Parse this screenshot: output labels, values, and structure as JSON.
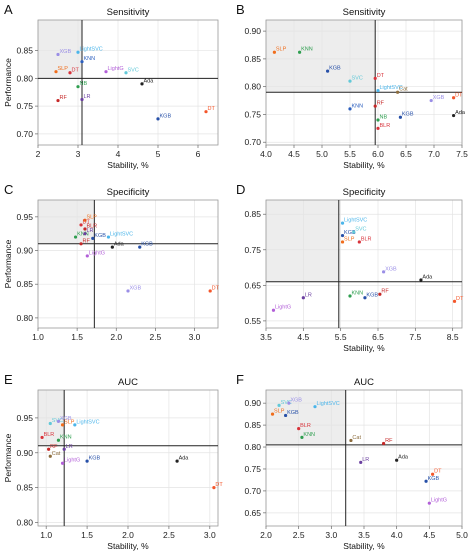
{
  "chart_data": [
    {
      "panel": "A",
      "type": "scatter",
      "title": "Sensitivity",
      "xlabel": "Stability, %",
      "ylabel": "Performance",
      "xlim": [
        2,
        6.5
      ],
      "ylim": [
        0.68,
        0.905
      ],
      "xticks": [
        "2",
        "3",
        "4",
        "5",
        "6"
      ],
      "xtick_values": [
        2,
        3,
        4,
        5,
        6
      ],
      "yticks": [
        "0.70",
        "0.75",
        "0.80",
        "0.85"
      ],
      "ytick_values": [
        0.7,
        0.75,
        0.8,
        0.85
      ],
      "ref": {
        "x": 3.1,
        "y": 0.8
      },
      "grid": true,
      "points": [
        {
          "label": "XGB",
          "x": 2.5,
          "y": 0.843,
          "color": "#9a8ee6"
        },
        {
          "label": "LightSVC",
          "x": 3.0,
          "y": 0.847,
          "color": "#4bb5ea"
        },
        {
          "label": "KNN",
          "x": 3.1,
          "y": 0.83,
          "color": "#2c5fbe"
        },
        {
          "label": "SLP",
          "x": 2.45,
          "y": 0.812,
          "color": "#f06d1c"
        },
        {
          "label": "DT",
          "x": 2.8,
          "y": 0.81,
          "color": "#d8323a"
        },
        {
          "label": "LightG",
          "x": 3.7,
          "y": 0.812,
          "color": "#b25fd8"
        },
        {
          "label": "SVC",
          "x": 4.2,
          "y": 0.81,
          "color": "#62c9d8"
        },
        {
          "label": "Ada",
          "x": 4.6,
          "y": 0.79,
          "color": "#222222"
        },
        {
          "label": "RF",
          "x": 2.5,
          "y": 0.76,
          "color": "#c62828"
        },
        {
          "label": "LR",
          "x": 3.1,
          "y": 0.762,
          "color": "#6b3fa0"
        },
        {
          "label": "NB",
          "x": 3.0,
          "y": 0.785,
          "color": "#2e9e4f"
        },
        {
          "label": "KGB",
          "x": 5.0,
          "y": 0.727,
          "color": "#2750a8"
        },
        {
          "label": "DT",
          "x": 6.2,
          "y": 0.74,
          "color": "#f4562a"
        }
      ]
    },
    {
      "panel": "B",
      "type": "scatter",
      "title": "Sensitivity",
      "xlabel": "Stability, %",
      "ylabel": "",
      "xlim": [
        4.0,
        7.5
      ],
      "ylim": [
        0.695,
        0.92
      ],
      "xticks": [
        "4.0",
        "4.5",
        "5.0",
        "5.5",
        "6.0",
        "6.5",
        "7.0",
        "7.5"
      ],
      "xtick_values": [
        4.0,
        4.5,
        5.0,
        5.5,
        6.0,
        6.5,
        7.0,
        7.5
      ],
      "yticks": [
        "0.70",
        "0.75",
        "0.80",
        "0.85",
        "0.90"
      ],
      "ytick_values": [
        0.7,
        0.75,
        0.8,
        0.85,
        0.9
      ],
      "ref": {
        "x": 5.95,
        "y": 0.79
      },
      "grid": true,
      "points": [
        {
          "label": "SLP",
          "x": 4.15,
          "y": 0.862,
          "color": "#f06d1c"
        },
        {
          "label": "KNN",
          "x": 4.6,
          "y": 0.862,
          "color": "#2e9e4f"
        },
        {
          "label": "KGB",
          "x": 5.1,
          "y": 0.828,
          "color": "#2750a8"
        },
        {
          "label": "SVC",
          "x": 5.5,
          "y": 0.81,
          "color": "#62c9d8"
        },
        {
          "label": "DT",
          "x": 5.95,
          "y": 0.815,
          "color": "#d8323a"
        },
        {
          "label": "LightSVC",
          "x": 6.0,
          "y": 0.793,
          "color": "#4bb5ea"
        },
        {
          "label": "Cat",
          "x": 6.35,
          "y": 0.79,
          "color": "#8c6d3e"
        },
        {
          "label": "XGB",
          "x": 6.95,
          "y": 0.775,
          "color": "#9a8ee6"
        },
        {
          "label": "DT",
          "x": 7.35,
          "y": 0.78,
          "color": "#f4562a"
        },
        {
          "label": "KNN",
          "x": 5.5,
          "y": 0.76,
          "color": "#2c5fbe"
        },
        {
          "label": "RF",
          "x": 5.95,
          "y": 0.765,
          "color": "#c62828"
        },
        {
          "label": "KGB",
          "x": 6.4,
          "y": 0.745,
          "color": "#2750a8"
        },
        {
          "label": "Ada",
          "x": 7.35,
          "y": 0.748,
          "color": "#222222"
        },
        {
          "label": "NB",
          "x": 6.0,
          "y": 0.74,
          "color": "#2e9e4f"
        },
        {
          "label": "BLR",
          "x": 6.0,
          "y": 0.725,
          "color": "#d8323a"
        }
      ]
    },
    {
      "panel": "C",
      "type": "scatter",
      "title": "Specificity",
      "xlabel": "",
      "ylabel": "Performance",
      "xlim": [
        1.0,
        3.3
      ],
      "ylim": [
        0.785,
        0.975
      ],
      "xticks": [
        "1.0",
        "1.5",
        "2.0",
        "2.5",
        "3.0"
      ],
      "xtick_values": [
        1.0,
        1.5,
        2.0,
        2.5,
        3.0
      ],
      "yticks": [
        "0.80",
        "0.85",
        "0.90",
        "0.95"
      ],
      "ytick_values": [
        0.8,
        0.85,
        0.9,
        0.95
      ],
      "ref": {
        "x": 1.72,
        "y": 0.91
      },
      "grid": true,
      "points": [
        {
          "label": "SLP",
          "x": 1.6,
          "y": 0.945,
          "color": "#f06d1c"
        },
        {
          "label": "DT",
          "x": 1.55,
          "y": 0.938,
          "color": "#d8323a"
        },
        {
          "label": "BLR",
          "x": 1.6,
          "y": 0.932,
          "color": "#c62828"
        },
        {
          "label": "KNN",
          "x": 1.48,
          "y": 0.92,
          "color": "#2e9e4f"
        },
        {
          "label": "LR",
          "x": 1.6,
          "y": 0.925,
          "color": "#6b3fa0"
        },
        {
          "label": "KGB",
          "x": 1.7,
          "y": 0.918,
          "color": "#2750a8"
        },
        {
          "label": "LightSVC",
          "x": 1.9,
          "y": 0.92,
          "color": "#4bb5ea"
        },
        {
          "label": "RF",
          "x": 1.55,
          "y": 0.91,
          "color": "#c62828"
        },
        {
          "label": "Ada",
          "x": 1.95,
          "y": 0.905,
          "color": "#222222"
        },
        {
          "label": "KGB",
          "x": 2.3,
          "y": 0.905,
          "color": "#2750a8"
        },
        {
          "label": "LightG",
          "x": 1.63,
          "y": 0.892,
          "color": "#b25fd8"
        },
        {
          "label": "XGB",
          "x": 2.15,
          "y": 0.84,
          "color": "#9a8ee6"
        },
        {
          "label": "DT",
          "x": 3.2,
          "y": 0.84,
          "color": "#f4562a"
        }
      ]
    },
    {
      "panel": "D",
      "type": "scatter",
      "title": "Specificity",
      "xlabel": "Stability, %",
      "ylabel": "",
      "xlim": [
        3.5,
        8.75
      ],
      "ylim": [
        0.53,
        0.89
      ],
      "xticks": [
        "3.5",
        "4.5",
        "5.5",
        "6.5",
        "7.5",
        "8.5"
      ],
      "xtick_values": [
        3.5,
        4.5,
        5.5,
        6.5,
        7.5,
        8.5
      ],
      "yticks": [
        "0.55",
        "0.65",
        "0.75",
        "0.85"
      ],
      "ytick_values": [
        0.55,
        0.65,
        0.75,
        0.85
      ],
      "ref": {
        "x": 5.45,
        "y": 0.66
      },
      "grid": true,
      "points": [
        {
          "label": "LightSVC",
          "x": 5.55,
          "y": 0.825,
          "color": "#4bb5ea"
        },
        {
          "label": "KGB",
          "x": 5.55,
          "y": 0.79,
          "color": "#2750a8"
        },
        {
          "label": "SVC",
          "x": 5.85,
          "y": 0.8,
          "color": "#62c9d8"
        },
        {
          "label": "SLP",
          "x": 5.55,
          "y": 0.772,
          "color": "#f06d1c"
        },
        {
          "label": "BLR",
          "x": 6.0,
          "y": 0.772,
          "color": "#d8323a"
        },
        {
          "label": "XGB",
          "x": 6.65,
          "y": 0.688,
          "color": "#9a8ee6"
        },
        {
          "label": "Ada",
          "x": 7.65,
          "y": 0.665,
          "color": "#222222"
        },
        {
          "label": "LR",
          "x": 4.5,
          "y": 0.615,
          "color": "#6b3fa0"
        },
        {
          "label": "KNN",
          "x": 5.75,
          "y": 0.62,
          "color": "#2e9e4f"
        },
        {
          "label": "KGB",
          "x": 6.15,
          "y": 0.615,
          "color": "#2750a8"
        },
        {
          "label": "RF",
          "x": 6.55,
          "y": 0.625,
          "color": "#c62828"
        },
        {
          "label": "LightG",
          "x": 3.7,
          "y": 0.58,
          "color": "#b25fd8"
        },
        {
          "label": "DT",
          "x": 8.55,
          "y": 0.605,
          "color": "#f4562a"
        }
      ]
    },
    {
      "panel": "E",
      "type": "scatter",
      "title": "AUC",
      "xlabel": "Stability, %",
      "ylabel": "Performance",
      "xlim": [
        0.9,
        3.1
      ],
      "ylim": [
        0.795,
        0.99
      ],
      "xticks": [
        "1.0",
        "1.5",
        "2.0",
        "2.5",
        "3.0"
      ],
      "xtick_values": [
        1.0,
        1.5,
        2.0,
        2.5,
        3.0
      ],
      "yticks": [
        "0.80",
        "0.85",
        "0.90",
        "0.95"
      ],
      "ytick_values": [
        0.8,
        0.85,
        0.9,
        0.95
      ],
      "ref": {
        "x": 1.22,
        "y": 0.91
      },
      "grid": true,
      "points": [
        {
          "label": "SVC",
          "x": 1.05,
          "y": 0.942,
          "color": "#62c9d8"
        },
        {
          "label": "XGB",
          "x": 1.15,
          "y": 0.945,
          "color": "#9a8ee6"
        },
        {
          "label": "SLP",
          "x": 1.2,
          "y": 0.94,
          "color": "#f06d1c"
        },
        {
          "label": "LightSVC",
          "x": 1.35,
          "y": 0.94,
          "color": "#4bb5ea"
        },
        {
          "label": "BLR",
          "x": 0.95,
          "y": 0.922,
          "color": "#d8323a"
        },
        {
          "label": "KNN",
          "x": 1.15,
          "y": 0.918,
          "color": "#2e9e4f"
        },
        {
          "label": "RF",
          "x": 1.03,
          "y": 0.905,
          "color": "#c62828"
        },
        {
          "label": "Cat",
          "x": 1.05,
          "y": 0.895,
          "color": "#8c6d3e"
        },
        {
          "label": "LR",
          "x": 1.22,
          "y": 0.905,
          "color": "#6b3fa0"
        },
        {
          "label": "LightG",
          "x": 1.2,
          "y": 0.885,
          "color": "#b25fd8"
        },
        {
          "label": "KGB",
          "x": 1.5,
          "y": 0.888,
          "color": "#2750a8"
        },
        {
          "label": "Ada",
          "x": 2.6,
          "y": 0.888,
          "color": "#222222"
        },
        {
          "label": "DT",
          "x": 3.05,
          "y": 0.85,
          "color": "#f4562a"
        }
      ]
    },
    {
      "panel": "F",
      "type": "scatter",
      "title": "AUC",
      "xlabel": "Stability, %",
      "ylabel": "",
      "xlim": [
        2.0,
        5.0
      ],
      "ylim": [
        0.62,
        0.93
      ],
      "xticks": [
        "2.0",
        "2.5",
        "3.0",
        "3.5",
        "4.0",
        "4.5",
        "5.0"
      ],
      "xtick_values": [
        2.0,
        2.5,
        3.0,
        3.5,
        4.0,
        4.5,
        5.0
      ],
      "yticks": [
        "0.65",
        "0.70",
        "0.75",
        "0.80",
        "0.85",
        "0.90"
      ],
      "ytick_values": [
        0.65,
        0.7,
        0.75,
        0.8,
        0.85,
        0.9
      ],
      "ref": {
        "x": 3.22,
        "y": 0.805
      },
      "grid": true,
      "points": [
        {
          "label": "SVC",
          "x": 2.2,
          "y": 0.895,
          "color": "#62c9d8"
        },
        {
          "label": "XGB",
          "x": 2.35,
          "y": 0.9,
          "color": "#9a8ee6"
        },
        {
          "label": "LightSVC",
          "x": 2.75,
          "y": 0.892,
          "color": "#4bb5ea"
        },
        {
          "label": "SLP",
          "x": 2.1,
          "y": 0.875,
          "color": "#f06d1c"
        },
        {
          "label": "KGB",
          "x": 2.3,
          "y": 0.872,
          "color": "#2750a8"
        },
        {
          "label": "BLR",
          "x": 2.5,
          "y": 0.842,
          "color": "#d8323a"
        },
        {
          "label": "KNN",
          "x": 2.55,
          "y": 0.822,
          "color": "#2e9e4f"
        },
        {
          "label": "Cat",
          "x": 3.3,
          "y": 0.815,
          "color": "#8c6d3e"
        },
        {
          "label": "RF",
          "x": 3.8,
          "y": 0.808,
          "color": "#c62828"
        },
        {
          "label": "LR",
          "x": 3.45,
          "y": 0.765,
          "color": "#6b3fa0"
        },
        {
          "label": "Ada",
          "x": 4.0,
          "y": 0.77,
          "color": "#222222"
        },
        {
          "label": "DT",
          "x": 4.55,
          "y": 0.738,
          "color": "#f4562a"
        },
        {
          "label": "KGB",
          "x": 4.45,
          "y": 0.722,
          "color": "#2750a8"
        },
        {
          "label": "LightG",
          "x": 4.5,
          "y": 0.672,
          "color": "#b25fd8"
        }
      ]
    }
  ]
}
